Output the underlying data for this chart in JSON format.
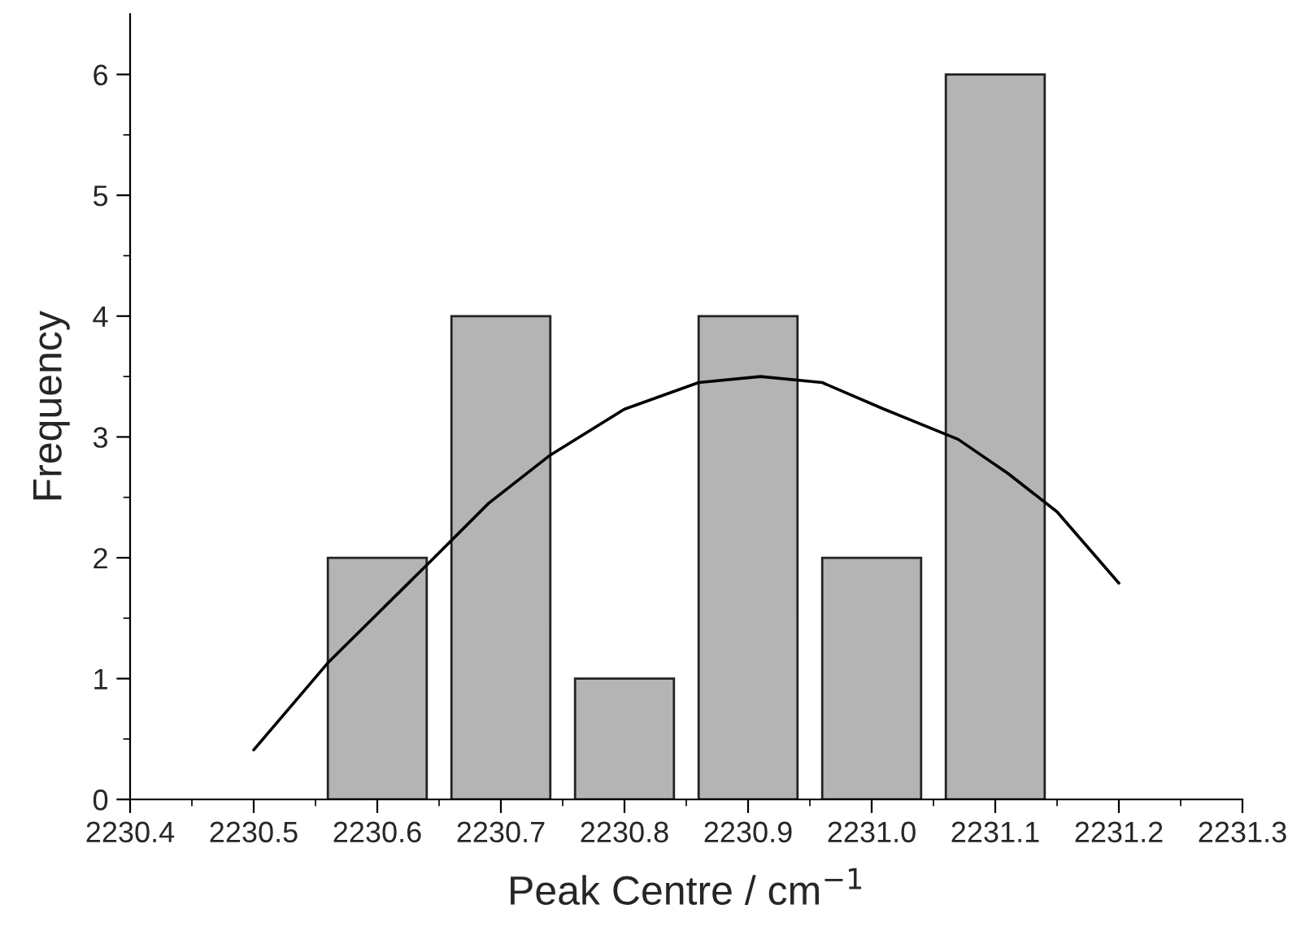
{
  "chart_data": {
    "type": "bar",
    "xlabel": "Peak Centre / cm$^{−1}$",
    "ylabel": "Frequency",
    "series": [
      {
        "color": "#b4b4b4",
        "x": [
          2230.6,
          2230.7,
          2230.8,
          2230.9,
          2231.0,
          2231.1
        ],
        "values": [
          2,
          4,
          1,
          4,
          2,
          6
        ]
      },
      {
        "type": "line",
        "color": "#000000",
        "x": [
          2230.5,
          2230.56,
          2230.64,
          2230.69,
          2230.74,
          2230.8,
          2230.86,
          2230.91,
          2230.96,
          2231.01,
          2231.07,
          2231.11,
          2231.15,
          2231.2
        ],
        "values": [
          0.41,
          1.13,
          1.94,
          2.45,
          2.85,
          3.23,
          3.45,
          3.5,
          3.45,
          3.23,
          2.98,
          2.7,
          2.38,
          1.79
        ]
      }
    ],
    "xlim": [
      2230.4,
      2231.3
    ],
    "ylim": [
      0,
      6.5
    ],
    "xticks": [
      {
        "value": 2230.4,
        "label": "2230.4"
      },
      {
        "value": 2230.5,
        "label": "2230.5"
      },
      {
        "value": 2230.6,
        "label": "2230.6"
      },
      {
        "value": 2230.7,
        "label": "2230.7"
      },
      {
        "value": 2230.8,
        "label": "2230.8"
      },
      {
        "value": 2230.9,
        "label": "2230.9"
      },
      {
        "value": 2231.0,
        "label": "2231.0"
      },
      {
        "value": 2231.1,
        "label": "2231.1"
      },
      {
        "value": 2231.2,
        "label": "2231.2"
      },
      {
        "value": 2231.3,
        "label": "2231.3"
      }
    ],
    "yticks": [
      0,
      1,
      2,
      3,
      4,
      5,
      6
    ],
    "grid": false,
    "legend": false
  }
}
